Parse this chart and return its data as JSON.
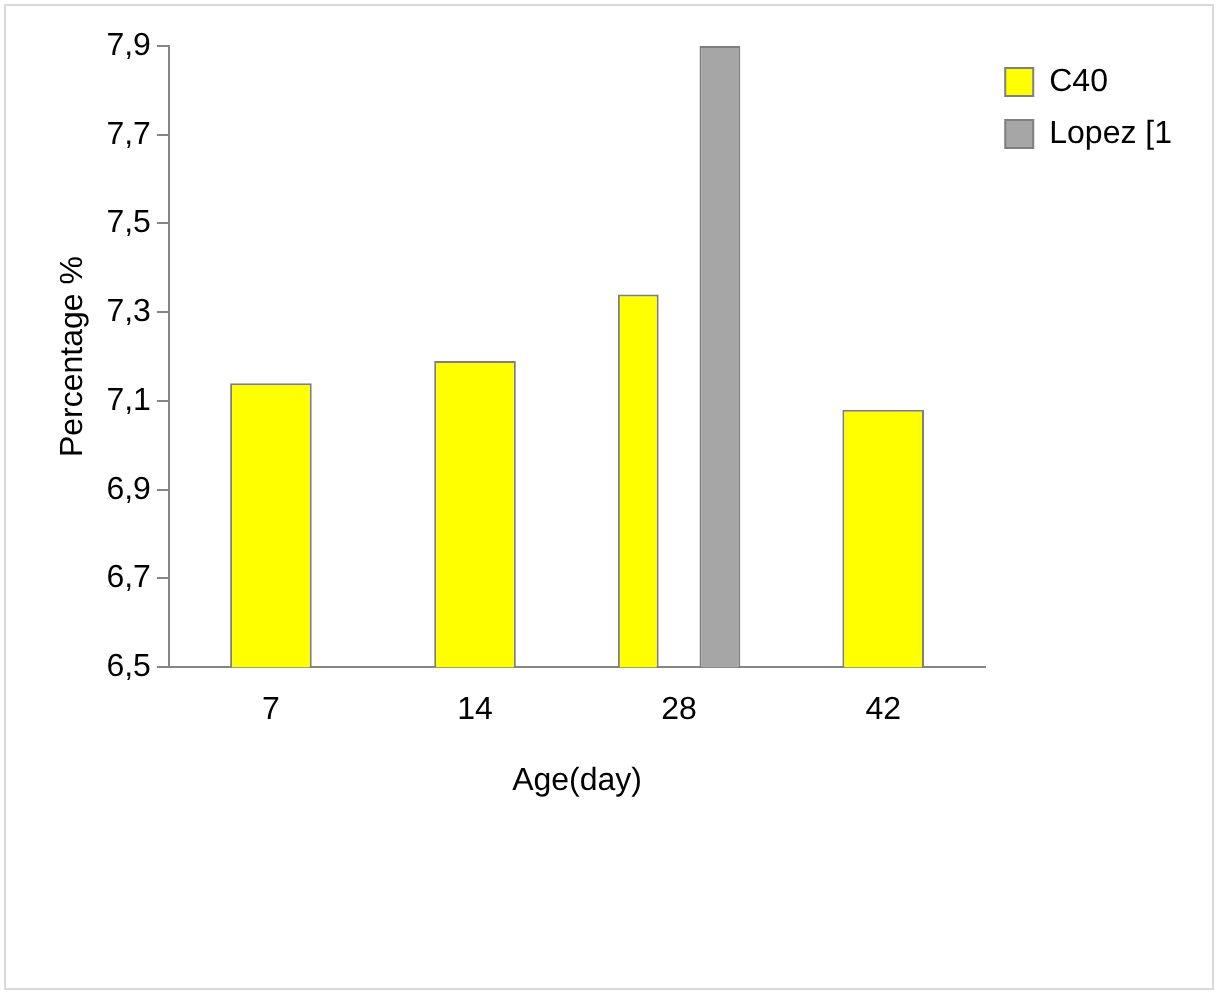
{
  "chart_data": {
    "type": "bar",
    "xlabel": "Age(day)",
    "ylabel": "Percentage %",
    "categories": [
      "7",
      "14",
      "28",
      "42"
    ],
    "series": [
      {
        "name": "C40",
        "color": "#ffff00",
        "values": [
          7.14,
          7.19,
          7.34,
          7.08
        ]
      },
      {
        "name": "Lopez [1",
        "color": "#a6a6a6",
        "values": [
          null,
          null,
          7.9,
          null
        ]
      }
    ],
    "ylim": [
      6.5,
      7.9
    ],
    "yticks": [
      {
        "value": 6.5,
        "label": "6,5"
      },
      {
        "value": 6.7,
        "label": "6,7"
      },
      {
        "value": 6.9,
        "label": "6,9"
      },
      {
        "value": 7.1,
        "label": "7,1"
      },
      {
        "value": 7.3,
        "label": "7,3"
      },
      {
        "value": 7.5,
        "label": "7,5"
      },
      {
        "value": 7.7,
        "label": "7,7"
      },
      {
        "value": 7.9,
        "label": "7,9"
      }
    ],
    "grid": false,
    "legend": "right"
  }
}
